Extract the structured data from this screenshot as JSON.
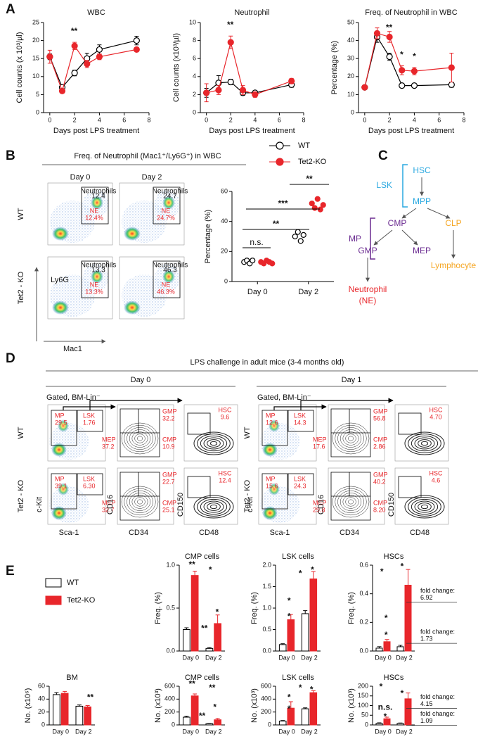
{
  "panels": [
    "A",
    "B",
    "C",
    "D",
    "E"
  ],
  "chart_data": [
    {
      "type": "line",
      "title": "WBC",
      "xlabel": "Days post LPS treatment",
      "ylabel": "Cell counts (x 10³/µl)",
      "x": [
        0,
        1,
        2,
        3,
        4,
        7
      ],
      "xlim": [
        -0.5,
        8
      ],
      "xticks": [
        0,
        2,
        4,
        6,
        8
      ],
      "ylim": [
        0,
        25
      ],
      "yticks": [
        0,
        5,
        10,
        15,
        20,
        25
      ],
      "series": [
        {
          "color": "#000000",
          "filled": false,
          "values": [
            15.5,
            7,
            11,
            15,
            17.5,
            20
          ],
          "errors": [
            0.8,
            0.5,
            0.8,
            1.5,
            1.3,
            1.2
          ]
        },
        {
          "color": "#e8262b",
          "filled": true,
          "values": [
            15.5,
            6,
            18.5,
            13.5,
            15.5,
            17.5
          ],
          "errors": [
            1.8,
            0.6,
            1,
            1,
            0.8,
            0.5
          ]
        }
      ],
      "annotations": [
        "**"
      ]
    },
    {
      "type": "line",
      "title": "Neutrophil",
      "xlabel": "Days post LPS treatment",
      "ylabel": "Cell counts (x10³/µl)",
      "x": [
        0,
        1,
        2,
        3,
        4,
        7
      ],
      "xlim": [
        -0.5,
        8
      ],
      "xticks": [
        0,
        2,
        4,
        6,
        8
      ],
      "ylim": [
        0,
        10
      ],
      "yticks": [
        0,
        2,
        4,
        6,
        8,
        10
      ],
      "series": [
        {
          "color": "#000000",
          "filled": false,
          "values": [
            2.2,
            3.3,
            3.4,
            2.2,
            2.2,
            3.1
          ],
          "errors": [
            0.5,
            0.8,
            0.3,
            0.3,
            0.2,
            0.3
          ]
        },
        {
          "color": "#e8262b",
          "filled": true,
          "values": [
            2.2,
            2.5,
            7.8,
            2.5,
            2.0,
            3.5
          ],
          "errors": [
            1,
            0.5,
            0.7,
            0.5,
            0.3,
            0.3
          ]
        }
      ],
      "annotations": [
        "**"
      ]
    },
    {
      "type": "line",
      "title": "Freq. of Neutrophil in WBC",
      "xlabel": "Days post LPS treatment",
      "ylabel": "Percentage (%)",
      "x": [
        0,
        1,
        2,
        3,
        4,
        7
      ],
      "xlim": [
        -0.5,
        8
      ],
      "xticks": [
        0,
        2,
        4,
        6,
        8
      ],
      "ylim": [
        0,
        50
      ],
      "yticks": [
        0,
        10,
        20,
        30,
        40,
        50
      ],
      "series": [
        {
          "color": "#000000",
          "filled": false,
          "values": [
            14,
            42,
            31,
            15,
            15,
            15.5
          ],
          "errors": [
            1,
            3,
            2,
            1,
            1,
            1.5
          ]
        },
        {
          "color": "#e8262b",
          "filled": true,
          "values": [
            14,
            44,
            42,
            23.5,
            23,
            25
          ],
          "errors": [
            1,
            3,
            3,
            2.5,
            2,
            8
          ]
        }
      ],
      "annotations": [
        "**",
        "*",
        "*"
      ]
    },
    {
      "type": "dot",
      "title": "Freq. of Neutrophil (Mac1⁺/Ly6G⁺) in WBC",
      "ylabel": "Percentage (%)",
      "categories": [
        "Day 0",
        "Day 2"
      ],
      "ylim": [
        0,
        60
      ],
      "yticks": [
        0,
        20,
        40,
        60
      ],
      "series": [
        {
          "name": "WT",
          "color": "#000000",
          "filled": false,
          "values": [
            [
              13,
              14,
              12,
              14
            ],
            [
              30,
              33,
              27,
              31
            ]
          ]
        },
        {
          "name": "Tet2-KO",
          "color": "#e8262b",
          "filled": true,
          "values": [
            [
              13,
              12,
              14,
              13,
              12
            ],
            [
              52,
              49,
              55,
              48,
              51
            ]
          ]
        }
      ],
      "annotations": [
        "n.s.",
        "**",
        "***",
        "**"
      ]
    },
    {
      "type": "bar",
      "title": "CMP cells",
      "ylabel": "Freq.  (%)",
      "categories": [
        "Day 0",
        "Day 2"
      ],
      "ylim": [
        0,
        1
      ],
      "yticks": [
        {
          "value": 0,
          "label": "0.0"
        },
        0.5,
        {
          "value": 1,
          "label": "1.0"
        }
      ],
      "series": [
        {
          "name": "WT",
          "color": "#000000",
          "filled": false,
          "values": [
            0.25,
            0.03
          ],
          "errors": [
            0.02,
            0.01
          ]
        },
        {
          "name": "Tet2-KO",
          "color": "#e8262b",
          "filled": true,
          "values": [
            0.88,
            0.32
          ],
          "errors": [
            0.05,
            0.1
          ]
        }
      ],
      "annotations": [
        "**",
        "*",
        "**",
        "*"
      ]
    },
    {
      "type": "bar",
      "title": "LSK cells",
      "ylabel": "Freq.  (%)",
      "categories": [
        "Day 0",
        "Day 2"
      ],
      "ylim": [
        0,
        2
      ],
      "yticks": [
        {
          "value": 0,
          "label": "0.0"
        },
        0.5,
        {
          "value": 1,
          "label": "1.0"
        },
        1.5,
        {
          "value": 2,
          "label": "2.0"
        }
      ],
      "series": [
        {
          "color": "#000000",
          "filled": false,
          "values": [
            0.15,
            0.87
          ],
          "errors": [
            0.02,
            0.07
          ]
        },
        {
          "color": "#e8262b",
          "filled": true,
          "values": [
            0.73,
            1.68
          ],
          "errors": [
            0.12,
            0.17
          ]
        }
      ],
      "annotations": [
        "*",
        "*",
        "*",
        "*"
      ]
    },
    {
      "type": "bar",
      "title": "HSCs",
      "ylabel": "Freq.  (%)",
      "categories": [
        "Day 0",
        "Day 2"
      ],
      "ylim": [
        0,
        0.6
      ],
      "yticks": [
        {
          "value": 0,
          "label": "0.0"
        },
        0.2,
        0.4,
        0.6
      ],
      "series": [
        {
          "color": "#000000",
          "filled": false,
          "values": [
            0.02,
            0.03
          ],
          "errors": [
            0.01,
            0.01
          ]
        },
        {
          "color": "#e8262b",
          "filled": true,
          "values": [
            0.065,
            0.46
          ],
          "errors": [
            0.015,
            0.11
          ]
        }
      ],
      "annotations": [
        "*",
        "*",
        "*",
        "*"
      ],
      "fold_label": "fold change:",
      "fold_values": [
        "6.92",
        "1.73"
      ]
    },
    {
      "type": "bar",
      "title": "BM",
      "ylabel": "No. (x10⁶)",
      "categories": [
        "Day 0",
        "Day 2"
      ],
      "ylim": [
        0,
        60
      ],
      "yticks": [
        0,
        20,
        40,
        60
      ],
      "series": [
        {
          "color": "#000000",
          "filled": false,
          "values": [
            47,
            29
          ],
          "errors": [
            3,
            2
          ]
        },
        {
          "color": "#e8262b",
          "filled": true,
          "values": [
            49,
            28
          ],
          "errors": [
            3,
            2
          ]
        }
      ],
      "annotations": [
        "**"
      ]
    },
    {
      "type": "bar",
      "title": "CMP cells",
      "ylabel": "No. (x10³)",
      "categories": [
        "Day 0",
        "Day 2"
      ],
      "ylim": [
        0,
        600
      ],
      "yticks": [
        0,
        200,
        400,
        600
      ],
      "series": [
        {
          "color": "#000000",
          "filled": false,
          "values": [
            120,
            20
          ],
          "errors": [
            15,
            5
          ]
        },
        {
          "color": "#e8262b",
          "filled": true,
          "values": [
            450,
            80
          ],
          "errors": [
            30,
            20
          ]
        }
      ],
      "annotations": [
        "**",
        "**",
        "**",
        "*"
      ]
    },
    {
      "type": "bar",
      "title": "LSK cells",
      "ylabel": "No. (x10³)",
      "categories": [
        "Day 0",
        "Day 2"
      ],
      "ylim": [
        0,
        600
      ],
      "yticks": [
        0,
        200,
        400,
        600
      ],
      "series": [
        {
          "color": "#000000",
          "filled": false,
          "values": [
            60,
            250
          ],
          "errors": [
            8,
            15
          ]
        },
        {
          "color": "#e8262b",
          "filled": true,
          "values": [
            260,
            500
          ],
          "errors": [
            100,
            30
          ]
        }
      ],
      "annotations": [
        "*",
        "*",
        "*",
        "*"
      ]
    },
    {
      "type": "bar",
      "title": "HSCs",
      "ylabel": "No. (x10³)",
      "categories": [
        "Day 0",
        "Day 2"
      ],
      "ylim": [
        0,
        200
      ],
      "yticks": [
        0,
        50,
        100,
        150,
        200
      ],
      "series": [
        {
          "color": "#000000",
          "filled": false,
          "values": [
            8,
            8
          ],
          "errors": [
            3,
            2
          ]
        },
        {
          "color": "#e8262b",
          "filled": true,
          "values": [
            32,
            135
          ],
          "errors": [
            8,
            30
          ]
        }
      ],
      "annotations": [
        "*",
        "*",
        "n.s.",
        "*"
      ],
      "fold_label": "fold change:",
      "fold_values": [
        "4.15",
        "1.09"
      ]
    }
  ],
  "flow_b": {
    "columns": [
      "Day 0",
      "Day 2"
    ],
    "rows": [
      "WT",
      "Tet2 - KO"
    ],
    "inner_label": "Neutrophils",
    "inner_values": [
      [
        "12.4",
        "24.7"
      ],
      [
        "13.3",
        "46.3"
      ]
    ],
    "gate_label": "NE",
    "gate_values": [
      [
        "12.4%",
        "24.7%"
      ],
      [
        "13.3%",
        "46.3%"
      ]
    ],
    "y_axis": "Ly6G",
    "x_axis": "Mac1"
  },
  "diagram_c": {
    "nodes": [
      "HSC",
      "MPP",
      "CMP",
      "CLP",
      "GMP",
      "MEP",
      "Neutrophil",
      "(NE)",
      "Lymphocyte"
    ],
    "brackets": [
      "LSK",
      "MP"
    ]
  },
  "flow_d": {
    "title": "LPS challenge in adult mice (3-4 months old)",
    "days": [
      "Day 0",
      "Day 1"
    ],
    "gated": "Gated, BM-Lin⁻",
    "rows": [
      "WT",
      "Tet2 - KO"
    ],
    "y_axes": [
      "c-Kit",
      "CD16",
      "CD150"
    ],
    "x_axes": [
      "Sca-1",
      "CD34",
      "CD48"
    ],
    "gate_names": [
      "MP",
      "LSK",
      "GMP",
      "MEP",
      "CMP",
      "HSC"
    ],
    "gate_values": [
      [
        [
          "29.5",
          "1.76",
          "32.2",
          "37.2",
          "10.9",
          "9.6"
        ],
        [
          "39.1",
          "6.30",
          "22.7",
          "32.7",
          "25.1",
          "12.4"
        ]
      ],
      [
        [
          "12.6",
          "14.3",
          "56.8",
          "17.6",
          "2.86",
          "4.70"
        ],
        [
          "15.6",
          "24.3",
          "40.2",
          "29.8",
          "8.20",
          "4.6"
        ]
      ]
    ]
  }
}
